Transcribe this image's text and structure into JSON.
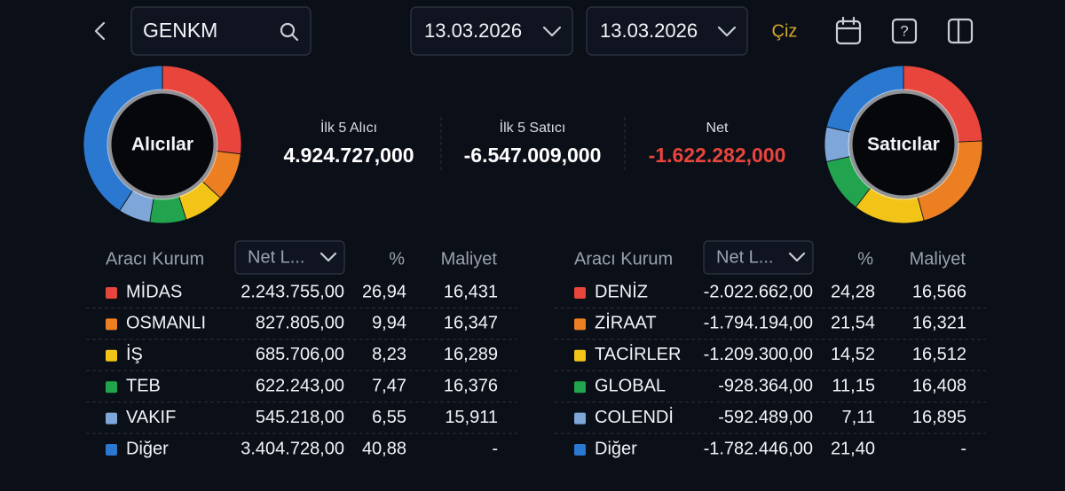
{
  "header": {
    "search": "GENKM",
    "date_from": "13.03.2026",
    "date_to": "13.03.2026",
    "draw_button": "Çiz"
  },
  "donuts": [
    {
      "label": "Alıcılar"
    },
    {
      "label": "Satıcılar"
    }
  ],
  "summary": [
    {
      "label": "İlk 5 Alıcı",
      "value": "4.924.727,000",
      "display": "4.924.727,000"
    },
    {
      "label": "İlk 5 Satıcı",
      "value": "-6.547.009,000"
    },
    {
      "label": "Net",
      "value": "-1.622.282,000"
    }
  ],
  "tables": [
    {
      "columns": [
        "Aracı Kurum",
        "Net L...",
        "%",
        "Maliyet"
      ],
      "rows": [
        {
          "color": "#e8453c",
          "name": "MİDAS",
          "net": "2.243.755,00",
          "pct": "26,94",
          "cost": "16,431"
        },
        {
          "color": "#eb7f22",
          "name": "OSMANLI",
          "net": "827.805,00",
          "pct": "9,94",
          "cost": "16,347"
        },
        {
          "color": "#f2c418",
          "name": "İŞ",
          "net": "685.706,00",
          "pct": "8,23",
          "cost": "16,289"
        },
        {
          "color": "#22a44f",
          "name": "TEB",
          "net": "622.243,00",
          "pct": "7,47",
          "cost": "16,376"
        },
        {
          "color": "#7ea6d8",
          "name": "VAKIF",
          "net": "545.218,00",
          "pct": "6,55",
          "cost": "15,911"
        },
        {
          "color": "#2a78d0",
          "name": "Diğer",
          "net": "3.404.728,00",
          "pct": "40,88",
          "cost": "-"
        }
      ]
    },
    {
      "columns": [
        "Aracı Kurum",
        "Net L...",
        "%",
        "Maliyet"
      ],
      "rows": [
        {
          "color": "#e8453c",
          "name": "DENİZ",
          "net": "-2.022.662,00",
          "pct": "24,28",
          "cost": "16,566"
        },
        {
          "color": "#eb7f22",
          "name": "ZİRAAT",
          "net": "-1.794.194,00",
          "pct": "21,54",
          "cost": "16,321"
        },
        {
          "color": "#f2c418",
          "name": "TACİRLER",
          "net": "-1.209.300,00",
          "pct": "14,52",
          "cost": "16,512"
        },
        {
          "color": "#22a44f",
          "name": "GLOBAL",
          "net": "-928.364,00",
          "pct": "11,15",
          "cost": "16,408"
        },
        {
          "color": "#7ea6d8",
          "name": "COLENDİ",
          "net": "-592.489,00",
          "pct": "7,11",
          "cost": "16,895"
        },
        {
          "color": "#2a78d0",
          "name": "Diğer",
          "net": "-1.782.446,00",
          "pct": "21,40",
          "cost": "-"
        }
      ]
    }
  ]
}
